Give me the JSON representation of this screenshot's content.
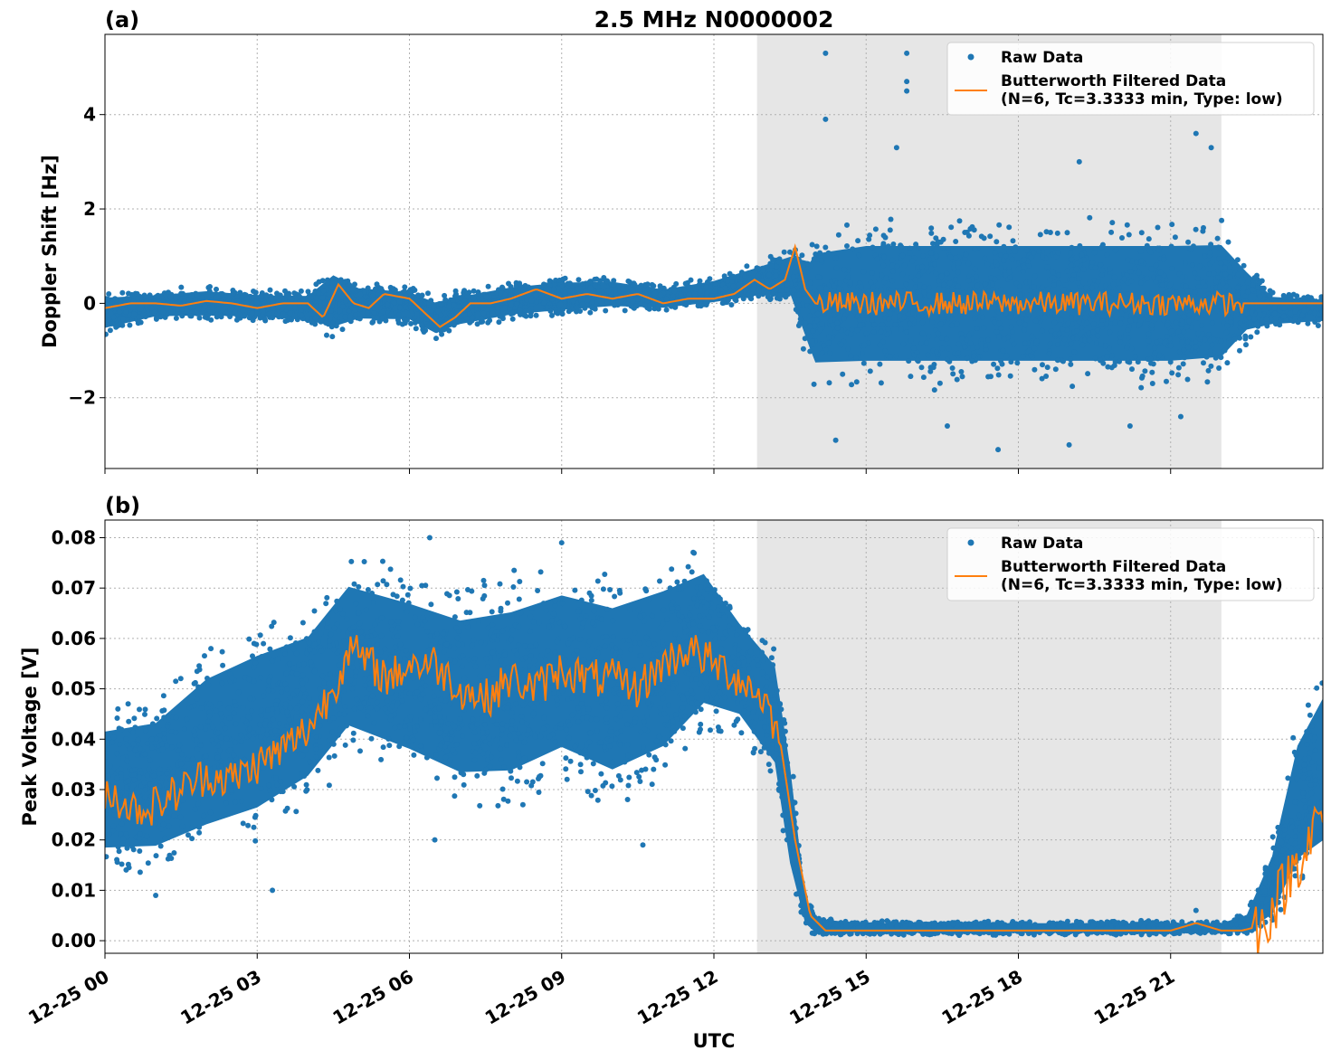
{
  "figure": {
    "title": "2.5 MHz N0000002",
    "xlabel": "UTC"
  },
  "colors": {
    "raw": "#1f77b4",
    "filtered": "#ff7f0e",
    "shade": "#e6e6e6",
    "grid": "#b0b0b0"
  },
  "legend": {
    "raw_label": "Raw Data",
    "filtered_label_line1": "Butterworth Filtered Data",
    "filtered_label_line2": "(N=6, Tc=3.3333 min, Type: low)"
  },
  "chart_data": [
    {
      "type": "scatter",
      "panel_label": "(a)",
      "title": "2.5 MHz N0000002",
      "ylabel": "Doppler Shift [Hz]",
      "xlim_hours": [
        0,
        24
      ],
      "ylim": [
        -3.5,
        5.7
      ],
      "yticks": [
        -2,
        0,
        2,
        4
      ],
      "ytick_labels": [
        "−2",
        "0",
        "2",
        "4"
      ],
      "shaded_region_hours": [
        12.85,
        22.0
      ],
      "grid": true,
      "legend_position": "top-right",
      "series": [
        {
          "name": "Raw Data",
          "kind": "points",
          "envelope_hours": [
            0,
            1,
            2,
            3,
            4,
            4.5,
            5,
            6,
            6.5,
            7,
            8,
            9,
            10,
            11,
            12,
            12.8,
            13.5,
            13.9,
            14,
            15,
            16,
            17,
            18,
            19,
            20,
            21,
            22,
            22.5,
            23,
            24
          ],
          "envelope_low": [
            -0.7,
            -0.4,
            -0.4,
            -0.4,
            -0.5,
            -0.8,
            -0.5,
            -0.5,
            -0.8,
            -0.6,
            -0.4,
            -0.3,
            -0.2,
            -0.2,
            -0.1,
            0.0,
            0.0,
            -1.5,
            -1.9,
            -1.9,
            -1.9,
            -1.9,
            -1.9,
            -1.9,
            -1.9,
            -1.9,
            -1.8,
            -0.9,
            -0.6,
            -0.5
          ],
          "envelope_high": [
            0.3,
            0.3,
            0.4,
            0.3,
            0.3,
            0.9,
            0.5,
            0.4,
            0.2,
            0.3,
            0.5,
            0.6,
            0.6,
            0.4,
            0.6,
            0.9,
            1.2,
            1.4,
            1.7,
            1.9,
            1.9,
            1.9,
            1.9,
            1.9,
            1.9,
            1.9,
            1.9,
            1.0,
            0.3,
            0.2
          ],
          "outliers": [
            {
              "x": 14.2,
              "y": 5.3
            },
            {
              "x": 14.2,
              "y": 3.9
            },
            {
              "x": 15.8,
              "y": 5.3
            },
            {
              "x": 15.8,
              "y": 4.7
            },
            {
              "x": 15.8,
              "y": 4.5
            },
            {
              "x": 15.6,
              "y": 3.3
            },
            {
              "x": 21.5,
              "y": 3.6
            },
            {
              "x": 21.8,
              "y": 3.3
            },
            {
              "x": 19.2,
              "y": 3.0
            },
            {
              "x": 17.6,
              "y": -3.1
            },
            {
              "x": 19.0,
              "y": -3.0
            },
            {
              "x": 14.4,
              "y": -2.9
            },
            {
              "x": 16.6,
              "y": -2.6
            },
            {
              "x": 20.2,
              "y": -2.6
            },
            {
              "x": 21.2,
              "y": -2.4
            }
          ]
        },
        {
          "name": "Butterworth Filtered Data",
          "kind": "line",
          "x_hours": [
            0,
            0.5,
            1,
            1.5,
            2,
            2.5,
            3,
            3.5,
            4,
            4.3,
            4.6,
            4.9,
            5.2,
            5.5,
            6,
            6.3,
            6.6,
            6.9,
            7.2,
            7.6,
            8,
            8.5,
            9,
            9.5,
            10,
            10.5,
            11,
            11.5,
            12,
            12.4,
            12.8,
            13.1,
            13.4,
            13.6,
            13.8,
            14,
            24
          ],
          "y": [
            -0.1,
            0.0,
            0.0,
            -0.05,
            0.05,
            0.0,
            -0.1,
            0.0,
            0.0,
            -0.3,
            0.4,
            0.0,
            -0.1,
            0.2,
            0.1,
            -0.2,
            -0.5,
            -0.3,
            0.0,
            0.0,
            0.1,
            0.3,
            0.1,
            0.2,
            0.1,
            0.2,
            0.0,
            0.1,
            0.1,
            0.2,
            0.5,
            0.3,
            0.5,
            1.2,
            0.3,
            0.0,
            0.0
          ],
          "noise_after_hours": 14.0,
          "noise_amplitude": 0.25,
          "noise_until_hours": 22.4
        }
      ]
    },
    {
      "type": "scatter",
      "panel_label": "(b)",
      "ylabel": "Peak Voltage [V]",
      "xlabel": "UTC",
      "xlim_hours": [
        0,
        24
      ],
      "xtick_hours": [
        0,
        3,
        6,
        9,
        12,
        15,
        18,
        21
      ],
      "xtick_labels": [
        "12-25 00",
        "12-25 03",
        "12-25 06",
        "12-25 09",
        "12-25 12",
        "12-25 15",
        "12-25 18",
        "12-25 21"
      ],
      "ylim": [
        -0.0025,
        0.0835
      ],
      "yticks": [
        0.0,
        0.01,
        0.02,
        0.03,
        0.04,
        0.05,
        0.06,
        0.07,
        0.08
      ],
      "ytick_labels": [
        "0.00",
        "0.01",
        "0.02",
        "0.03",
        "0.04",
        "0.05",
        "0.06",
        "0.07",
        "0.08"
      ],
      "shaded_region_hours": [
        12.85,
        22.0
      ],
      "grid": true,
      "legend_position": "top-right",
      "series": [
        {
          "name": "Raw Data",
          "kind": "points",
          "envelope_hours": [
            0,
            1,
            2,
            3,
            4,
            4.8,
            6,
            7,
            8,
            9,
            10,
            11,
            11.8,
            12.5,
            13.2,
            13.5,
            13.8,
            14.0,
            15,
            18,
            21,
            22,
            22.5,
            23,
            23.5,
            24
          ],
          "envelope_low": [
            0.012,
            0.012,
            0.015,
            0.018,
            0.025,
            0.035,
            0.03,
            0.025,
            0.025,
            0.03,
            0.025,
            0.03,
            0.04,
            0.04,
            0.03,
            0.01,
            0.002,
            0.001,
            0.001,
            0.001,
            0.001,
            0.001,
            0.001,
            0.002,
            0.01,
            0.012
          ],
          "envelope_high": [
            0.048,
            0.05,
            0.06,
            0.065,
            0.068,
            0.078,
            0.075,
            0.072,
            0.074,
            0.077,
            0.075,
            0.078,
            0.08,
            0.068,
            0.06,
            0.04,
            0.01,
            0.005,
            0.004,
            0.004,
            0.004,
            0.004,
            0.006,
            0.02,
            0.045,
            0.056
          ],
          "outliers": [
            {
              "x": 3.3,
              "y": 0.01
            },
            {
              "x": 1.0,
              "y": 0.009
            },
            {
              "x": 6.5,
              "y": 0.02
            },
            {
              "x": 10.6,
              "y": 0.019
            },
            {
              "x": 9.0,
              "y": 0.079
            },
            {
              "x": 6.4,
              "y": 0.08
            },
            {
              "x": 21.5,
              "y": 0.006
            }
          ]
        },
        {
          "name": "Butterworth Filtered Data",
          "kind": "line",
          "x_hours": [
            0,
            0.3,
            0.6,
            1,
            1.5,
            2,
            2.5,
            3,
            3.5,
            4,
            4.5,
            4.8,
            5.2,
            5.6,
            6,
            6.5,
            7,
            7.5,
            8,
            8.5,
            9,
            9.5,
            10,
            10.5,
            11,
            11.5,
            12,
            12.5,
            13,
            13.3,
            13.6,
            13.9,
            14.2,
            15,
            18,
            21,
            21.5,
            22,
            22.4,
            22.8,
            23.2,
            23.6,
            24
          ],
          "y": [
            0.03,
            0.028,
            0.026,
            0.027,
            0.03,
            0.033,
            0.032,
            0.035,
            0.038,
            0.042,
            0.05,
            0.058,
            0.055,
            0.052,
            0.055,
            0.055,
            0.05,
            0.048,
            0.052,
            0.05,
            0.054,
            0.052,
            0.052,
            0.05,
            0.055,
            0.058,
            0.055,
            0.052,
            0.048,
            0.04,
            0.02,
            0.005,
            0.002,
            0.002,
            0.002,
            0.002,
            0.0035,
            0.002,
            0.002,
            0.003,
            0.01,
            0.018,
            0.025
          ],
          "noise_amplitude": 0.004,
          "noise_until_hours": 13.3
        }
      ]
    }
  ]
}
